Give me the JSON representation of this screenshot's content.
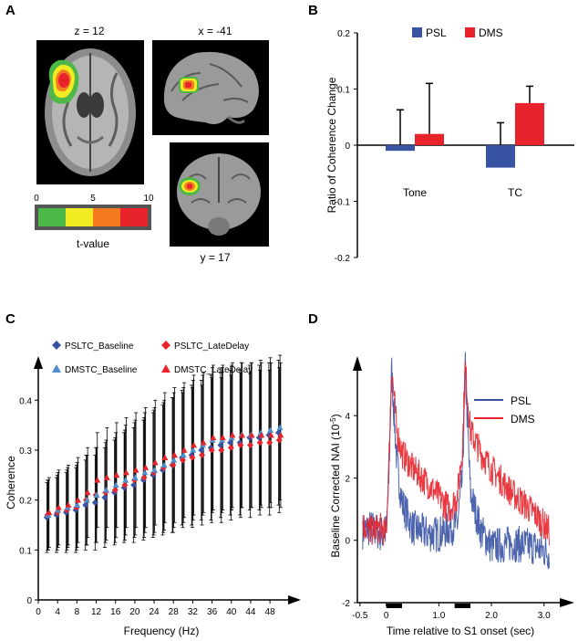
{
  "panels": {
    "a": {
      "label": "A",
      "views": [
        {
          "title": "z = 12"
        },
        {
          "title": "x = -41"
        },
        {
          "title": "y = 17"
        }
      ],
      "colorbar": {
        "ticks": [
          "0",
          "5",
          "10"
        ],
        "label": "t-value",
        "colors": [
          "#4cb848",
          "#f1eb24",
          "#f47b20",
          "#e8232b"
        ]
      }
    },
    "b": {
      "label": "B"
    },
    "c": {
      "label": "C"
    },
    "d": {
      "label": "D"
    }
  },
  "chart_data": [
    {
      "id": "B",
      "type": "bar",
      "categories": [
        "Tone",
        "TC"
      ],
      "series": [
        {
          "name": "PSL",
          "color": "#3953a4",
          "values": [
            -0.01,
            -0.04
          ],
          "errors": [
            0.073,
            0.08
          ]
        },
        {
          "name": "DMS",
          "color": "#e8232b",
          "values": [
            0.02,
            0.075
          ],
          "errors": [
            0.09,
            0.03
          ]
        }
      ],
      "xlabel": "",
      "ylabel": "Ratio of Coherence Change",
      "ylim": [
        -0.2,
        0.2
      ],
      "yticks": [
        "0.2",
        "0.1",
        "0",
        "-0.1",
        "-0.2"
      ],
      "legend": "top"
    },
    {
      "id": "C",
      "type": "scatter",
      "xlabel": "Frequency (Hz)",
      "ylabel": "Coherence",
      "xticks": [
        "0",
        "4",
        "8",
        "12",
        "16",
        "20",
        "24",
        "28",
        "32",
        "36",
        "40",
        "44",
        "48"
      ],
      "yticks": [
        "0",
        "0.1",
        "0.2",
        "0.3",
        "0.4"
      ],
      "xlim": [
        0,
        51
      ],
      "ylim": [
        0,
        0.47
      ],
      "x": [
        2,
        4,
        6,
        8,
        10,
        12,
        14,
        16,
        18,
        20,
        22,
        24,
        26,
        28,
        30,
        32,
        34,
        36,
        38,
        40,
        42,
        44,
        46,
        48,
        50
      ],
      "series": [
        {
          "name": "PSLTC_Baseline",
          "marker": "diamond",
          "color": "#3953a4",
          "values": [
            0.165,
            0.17,
            0.175,
            0.18,
            0.19,
            0.195,
            0.205,
            0.215,
            0.225,
            0.23,
            0.24,
            0.25,
            0.26,
            0.27,
            0.285,
            0.29,
            0.3,
            0.305,
            0.31,
            0.315,
            0.315,
            0.325,
            0.325,
            0.33,
            0.335
          ],
          "errors": [
            0.07,
            0.075,
            0.08,
            0.085,
            0.09,
            0.095,
            0.1,
            0.105,
            0.11,
            0.115,
            0.12,
            0.125,
            0.13,
            0.135,
            0.135,
            0.14,
            0.14,
            0.145,
            0.145,
            0.145,
            0.145,
            0.145,
            0.145,
            0.145,
            0.145
          ]
        },
        {
          "name": "PSLTC_LateDelay",
          "marker": "diamond",
          "color": "#e8232b",
          "values": [
            0.17,
            0.175,
            0.18,
            0.185,
            0.2,
            0.21,
            0.215,
            0.22,
            0.23,
            0.24,
            0.245,
            0.255,
            0.265,
            0.27,
            0.28,
            0.285,
            0.29,
            0.3,
            0.3,
            0.305,
            0.31,
            0.31,
            0.315,
            0.315,
            0.32
          ],
          "errors": [
            0.07,
            0.075,
            0.08,
            0.085,
            0.09,
            0.095,
            0.1,
            0.105,
            0.11,
            0.115,
            0.12,
            0.125,
            0.13,
            0.135,
            0.135,
            0.14,
            0.14,
            0.145,
            0.145,
            0.145,
            0.145,
            0.145,
            0.145,
            0.145,
            0.145
          ]
        },
        {
          "name": "DMSTC_Baseline",
          "marker": "triangle",
          "color": "#4d8fcc",
          "values": [
            0.17,
            0.18,
            0.185,
            0.19,
            0.2,
            0.21,
            0.22,
            0.23,
            0.24,
            0.245,
            0.255,
            0.26,
            0.27,
            0.28,
            0.29,
            0.3,
            0.31,
            0.32,
            0.32,
            0.325,
            0.33,
            0.33,
            0.335,
            0.34,
            0.345
          ],
          "errors": [
            0.07,
            0.075,
            0.08,
            0.085,
            0.09,
            0.095,
            0.1,
            0.105,
            0.11,
            0.115,
            0.12,
            0.125,
            0.13,
            0.135,
            0.135,
            0.14,
            0.14,
            0.145,
            0.145,
            0.145,
            0.145,
            0.145,
            0.145,
            0.145,
            0.145
          ]
        },
        {
          "name": "DMSTC_LateDelay",
          "marker": "triangle",
          "color": "#e8232b",
          "values": [
            0.175,
            0.185,
            0.19,
            0.2,
            0.215,
            0.24,
            0.245,
            0.25,
            0.255,
            0.26,
            0.265,
            0.275,
            0.285,
            0.29,
            0.3,
            0.31,
            0.315,
            0.325,
            0.325,
            0.33,
            0.33,
            0.33,
            0.33,
            0.33,
            0.33
          ],
          "errors": [
            0.07,
            0.075,
            0.08,
            0.085,
            0.09,
            0.095,
            0.1,
            0.105,
            0.11,
            0.115,
            0.12,
            0.125,
            0.13,
            0.135,
            0.135,
            0.14,
            0.14,
            0.145,
            0.145,
            0.145,
            0.145,
            0.145,
            0.145,
            0.145,
            0.145
          ]
        }
      ],
      "legend": "top-left"
    },
    {
      "id": "D",
      "type": "line",
      "xlabel": "Time relative to S1 onset (sec)",
      "ylabel": "Baseline Corrected NAI (10",
      "ylabel_sup": "-5",
      "ylabel_end": ")",
      "xlim": [
        -0.55,
        3.3
      ],
      "ylim": [
        -2,
        5.5
      ],
      "xticks": [
        "-0.5",
        "0",
        "1.0",
        "2.0",
        "3.0"
      ],
      "yticks": [
        "-2",
        "0",
        "2",
        "4"
      ],
      "stimulus_bars": [
        [
          0.0,
          0.3
        ],
        [
          1.3,
          1.6
        ]
      ],
      "series": [
        {
          "name": "PSL",
          "color": "#3953a4",
          "x": [
            -0.45,
            -0.3,
            -0.1,
            0.0,
            0.05,
            0.1,
            0.2,
            0.3,
            0.5,
            0.8,
            1.0,
            1.2,
            1.35,
            1.45,
            1.5,
            1.6,
            1.8,
            2.0,
            2.4,
            2.8,
            3.1
          ],
          "values": [
            0.3,
            0.4,
            0.2,
            0.3,
            2.0,
            5.5,
            2.5,
            1.2,
            0.4,
            0.2,
            0.2,
            0.4,
            0.5,
            2.0,
            5.6,
            1.5,
            0.3,
            -0.2,
            -0.1,
            -0.2,
            -0.4
          ]
        },
        {
          "name": "DMS",
          "color": "#e8232b",
          "x": [
            -0.45,
            -0.3,
            -0.1,
            0.0,
            0.05,
            0.1,
            0.2,
            0.3,
            0.5,
            0.8,
            1.0,
            1.2,
            1.35,
            1.45,
            1.5,
            1.6,
            1.8,
            2.0,
            2.4,
            2.8,
            3.1
          ],
          "values": [
            0.5,
            0.3,
            0.4,
            0.2,
            2.5,
            5.6,
            3.5,
            2.8,
            2.3,
            1.8,
            1.4,
            1.0,
            1.4,
            3.0,
            5.6,
            3.5,
            2.8,
            2.3,
            1.5,
            0.9,
            0.3
          ]
        }
      ],
      "legend": "top-right"
    }
  ]
}
